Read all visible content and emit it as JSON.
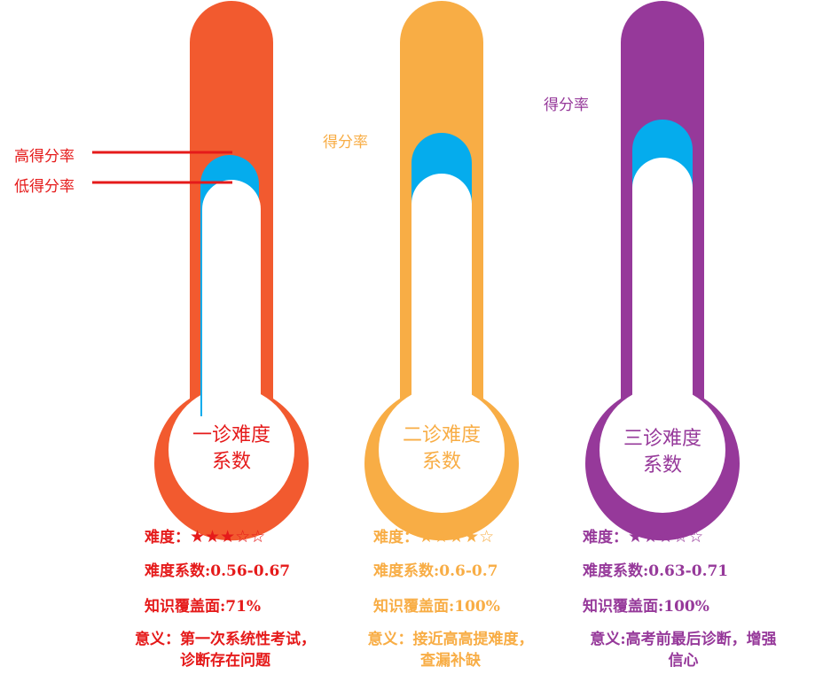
{
  "colors": {
    "col1": "#f25a2f",
    "col2": "#f8ad45",
    "col3": "#96399a",
    "water": "#05aced",
    "red": "#e51a1a"
  },
  "legend": {
    "high": "高得分率",
    "low": "低得分率"
  },
  "columns": [
    {
      "title_line1": "一诊难度",
      "title_line2": "系数",
      "score_label": "",
      "difficulty_label": "难度：",
      "stars": "★★★☆☆",
      "stars_filled": 3,
      "coef_text": "难度系数:0.56-0.67",
      "coverage_text": "知识覆盖面:71%",
      "meaning_line1": "意义：第一次系统性考试，",
      "meaning_line2": "诊断存在问题"
    },
    {
      "title_line1": "二诊难度",
      "title_line2": "系数",
      "score_label": "得分率",
      "difficulty_label": "难度：",
      "stars": "★★★★☆",
      "stars_filled": 4,
      "coef_text": "难度系数:0.6-0.7",
      "coverage_text": "知识覆盖面:100%",
      "meaning_line1": "意义：接近高高提难度，",
      "meaning_line2": "查漏补缺"
    },
    {
      "title_line1": "三诊难度",
      "title_line2": "系数",
      "score_label": "得分率",
      "difficulty_label": "难度：",
      "stars": "★★★☆☆",
      "stars_filled": 3,
      "coef_text": "难度系数:0.63-0.71",
      "coverage_text": "知识覆盖面:100%",
      "meaning_line1": "意义:高考前最后诊断，增强",
      "meaning_line2": "信心"
    }
  ]
}
